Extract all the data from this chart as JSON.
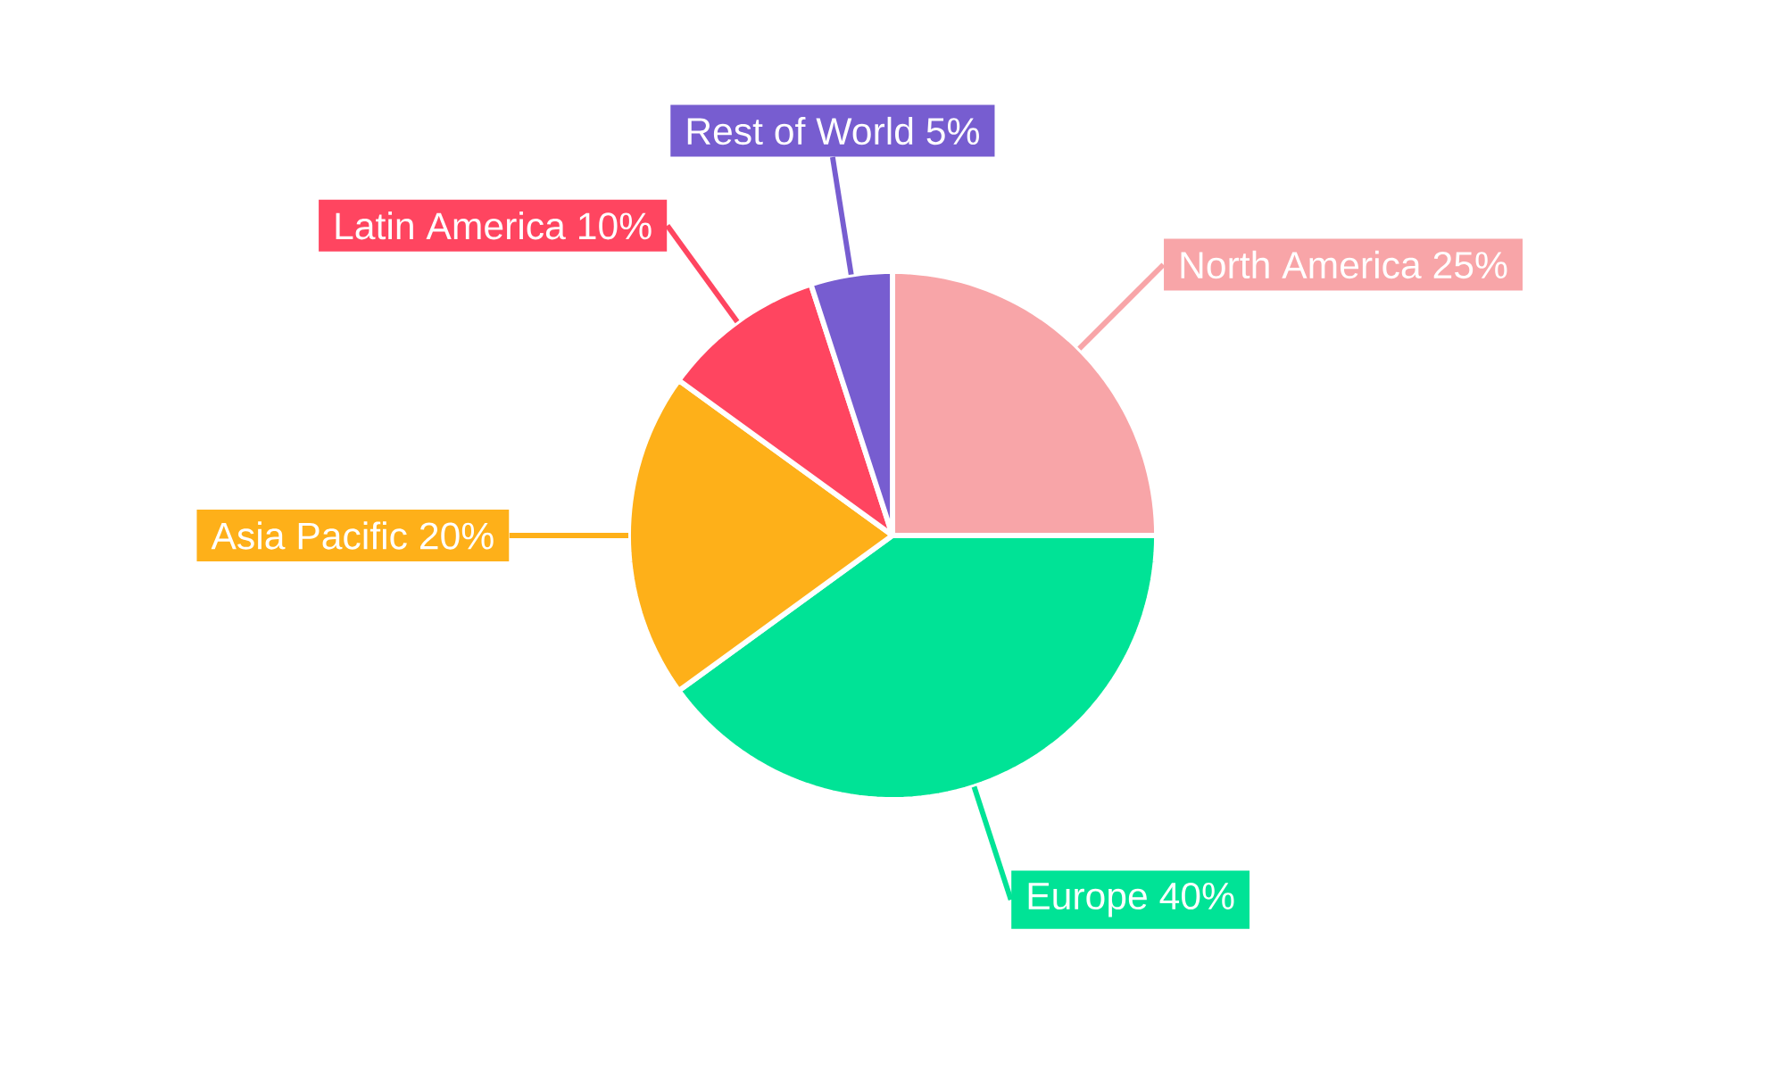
{
  "chart_data": {
    "type": "pie",
    "categories": [
      "North America",
      "Europe",
      "Asia Pacific",
      "Latin America",
      "Rest of World"
    ],
    "values": [
      25,
      40,
      20,
      10,
      5
    ],
    "value_labels": [
      "25%",
      "40%",
      "20%",
      "10%",
      "5%"
    ],
    "colors": [
      "#f8a5a8",
      "#00e396",
      "#feb019",
      "#ff4560",
      "#775dd0"
    ]
  }
}
